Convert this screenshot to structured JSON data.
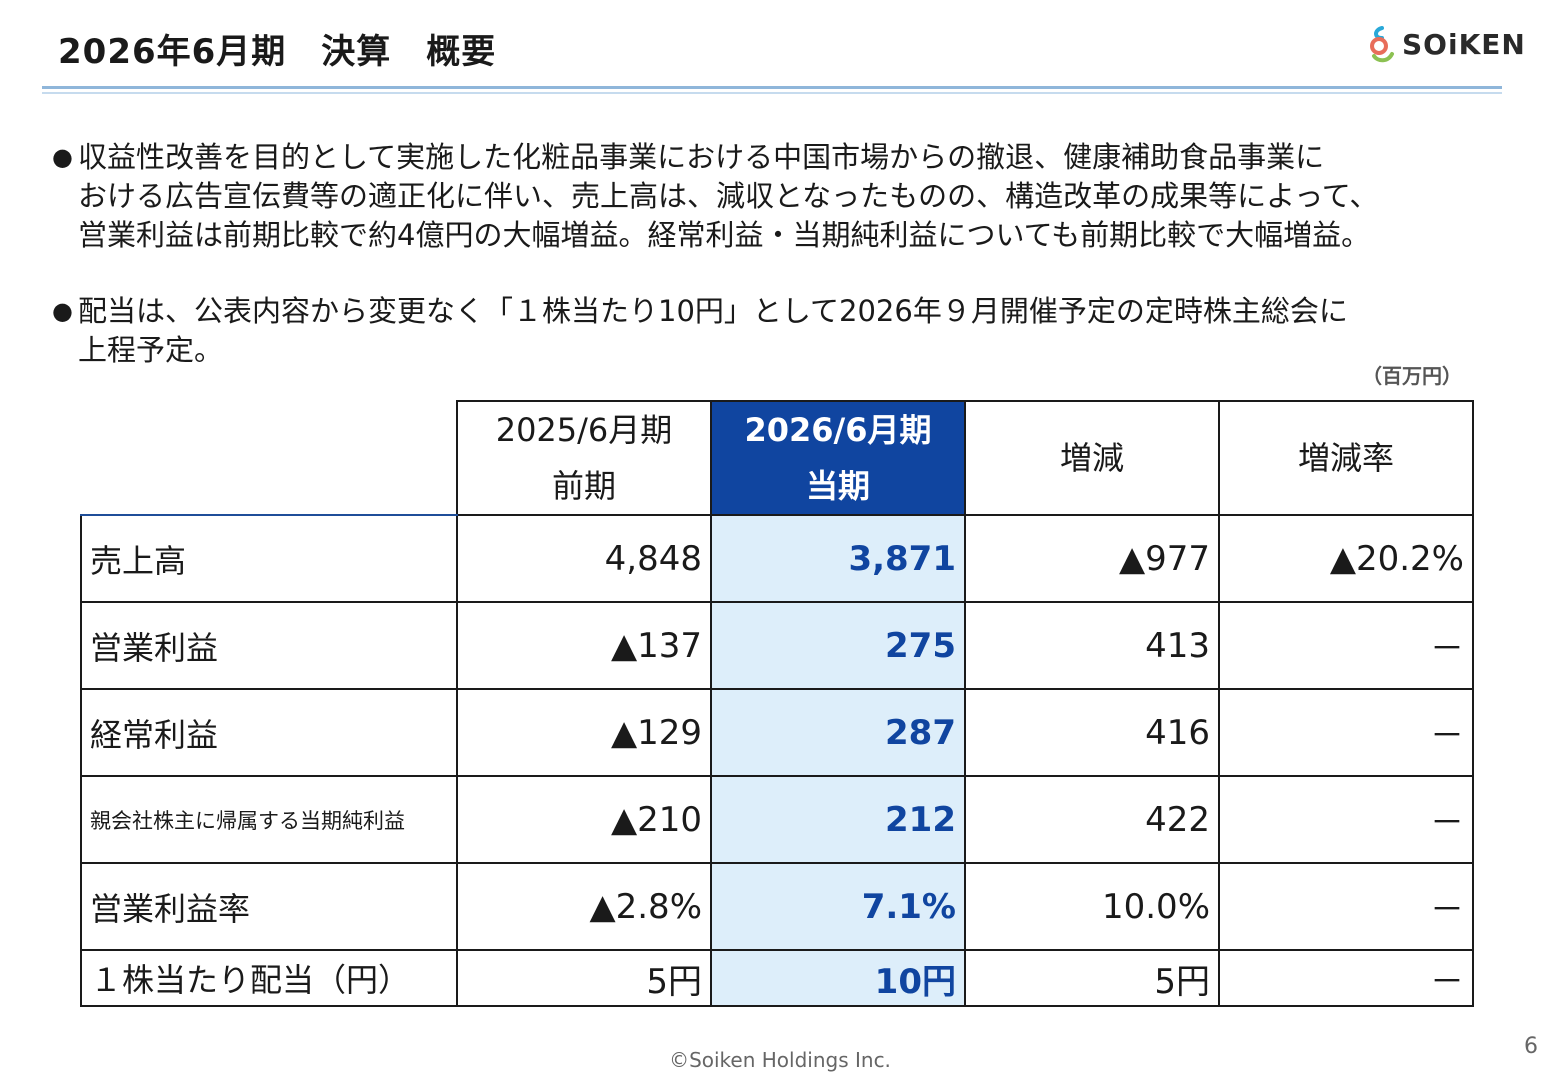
{
  "title": "2026年6月期　決算　概要",
  "logo": {
    "text": "SOiKEN",
    "icon": "soiken-logo-icon"
  },
  "bullets": [
    {
      "lines": [
        "収益性改善を目的として実施した化粧品事業における中国市場からの撤退、健康補助食品事業に",
        "おける広告宣伝費等の適正化に伴い、売上高は、減収となったものの、構造改革の成果等によって、",
        "営業利益は前期比較で約4億円の大幅増益。経常利益・当期純利益についても前期比較で大幅増益。"
      ]
    },
    {
      "lines": [
        "配当は、公表内容から変更なく「１株当たり10円」として2026年９月開催予定の定時株主総会に",
        "上程予定。"
      ]
    }
  ],
  "unit": "（百万円）",
  "table": {
    "headers": [
      {
        "line1": "2025/6月期",
        "line2": "前期"
      },
      {
        "line1": "2026/6月期",
        "line2": "当期"
      },
      {
        "line1": "増減",
        "line2": ""
      },
      {
        "line1": "増減率",
        "line2": ""
      }
    ],
    "rows": [
      {
        "label": "売上高",
        "prev": "4,848",
        "cur": "3,871",
        "diff": "▲977",
        "rate": "▲20.2%"
      },
      {
        "label": "営業利益",
        "prev": "▲137",
        "cur": "275",
        "diff": "413",
        "rate": "－"
      },
      {
        "label": "経常利益",
        "prev": "▲129",
        "cur": "287",
        "diff": "416",
        "rate": "－"
      },
      {
        "label": "親会社株主に帰属する当期純利益",
        "prev": "▲210",
        "cur": "212",
        "diff": "422",
        "rate": "－"
      },
      {
        "label": "営業利益率",
        "prev": "▲2.8%",
        "cur": "7.1%",
        "diff": "10.0%",
        "rate": "－"
      },
      {
        "label": "１株当たり配当（円）",
        "prev": "5円",
        "cur": "10円",
        "diff": "5円",
        "rate": "－"
      }
    ]
  },
  "footer": "©Soiken Holdings Inc.",
  "page_number": "6",
  "colors": {
    "accent": "#1045a0",
    "highlight": "#ddeefa",
    "rule": "#8fb6da"
  }
}
